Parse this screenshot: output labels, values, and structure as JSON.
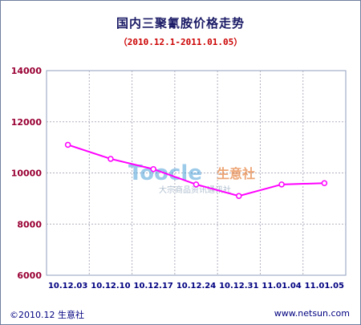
{
  "chart_data": {
    "type": "line",
    "title": "国内三聚氰胺价格走势",
    "subtitle": "（2010.12.1-2011.01.05）",
    "categories": [
      "10.12.03",
      "10.12.10",
      "10.12.17",
      "10.12.24",
      "10.12.31",
      "11.01.04",
      "11.01.05"
    ],
    "series": [
      {
        "values": [
          11100,
          10550,
          10150,
          9550,
          9100,
          9550,
          9600
        ],
        "color": "#ff00ff"
      }
    ],
    "ylim": [
      6000,
      14000
    ],
    "yticks": [
      6000,
      8000,
      10000,
      12000,
      14000
    ],
    "grid": true,
    "xlabel": "",
    "ylabel": ""
  },
  "watermark": {
    "logo_latin": "Toocle",
    "logo_cn": "生意社",
    "tagline": "大宗商品资讯通讯社"
  },
  "footer": {
    "copyright": "©2010.12 生意社",
    "url": "www.netsun.com"
  },
  "colors": {
    "axis_labels": "#990033",
    "grid": "#b0b0c0",
    "plot_border": "#8f9fbf"
  }
}
